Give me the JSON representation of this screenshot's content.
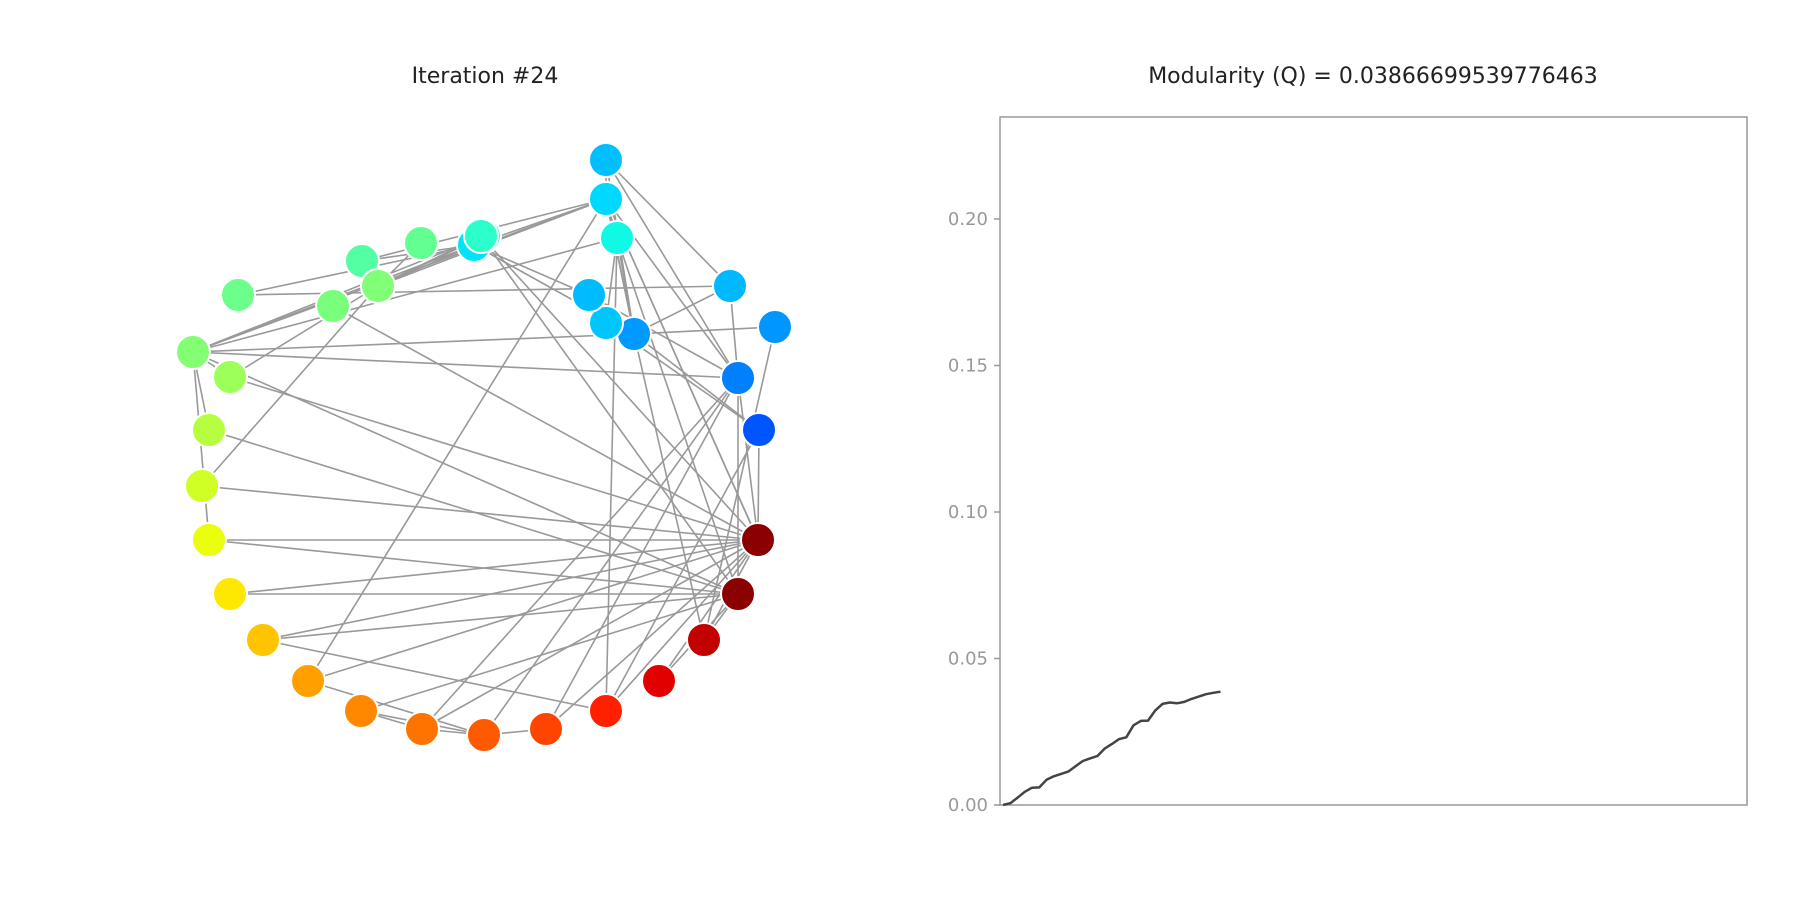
{
  "left_panel": {
    "title": "Iteration #24"
  },
  "right_panel": {
    "title": "Modularity (Q) = 0.03866699539776463"
  },
  "colors": {
    "edge": "#999999",
    "node_outline": "#ffffff",
    "line": "#444444",
    "axis_frame": "#999999",
    "tick_text": "#999999"
  },
  "chart_data": [
    {
      "type": "network",
      "title": "Iteration #24",
      "node_count": 36,
      "node_colormap": "jet",
      "nodes": [
        {
          "id": 0,
          "color": "#00bfff"
        },
        {
          "id": 1,
          "color": "#0099ff"
        },
        {
          "id": 2,
          "color": "#007fff"
        },
        {
          "id": 3,
          "color": "#0055ff"
        },
        {
          "id": 4,
          "color": "#8b0000"
        },
        {
          "id": 5,
          "color": "#8b0000"
        },
        {
          "id": 6,
          "color": "#c20000"
        },
        {
          "id": 7,
          "color": "#e00000"
        },
        {
          "id": 8,
          "color": "#ff2000"
        },
        {
          "id": 9,
          "color": "#ff4400"
        },
        {
          "id": 10,
          "color": "#ff5a00"
        },
        {
          "id": 11,
          "color": "#ff7400"
        },
        {
          "id": 12,
          "color": "#ff8800"
        },
        {
          "id": 13,
          "color": "#ffa000"
        },
        {
          "id": 14,
          "color": "#ffc400"
        },
        {
          "id": 15,
          "color": "#ffe800"
        },
        {
          "id": 16,
          "color": "#eaff0c"
        },
        {
          "id": 17,
          "color": "#d0ff26"
        },
        {
          "id": 18,
          "color": "#b6ff40"
        },
        {
          "id": 19,
          "color": "#9cff5a"
        },
        {
          "id": 20,
          "color": "#84ff73"
        },
        {
          "id": 21,
          "color": "#6cff8b"
        },
        {
          "id": 22,
          "color": "#54ffa3"
        },
        {
          "id": 23,
          "color": "#3cffbb"
        },
        {
          "id": 24,
          "color": "#00e4f8"
        },
        {
          "id": 25,
          "color": "#00c6ff"
        },
        {
          "id": 26,
          "color": "#00bcff"
        },
        {
          "id": 27,
          "color": "#00d4ff"
        },
        {
          "id": 28,
          "color": "#0096ff"
        },
        {
          "id": 29,
          "color": "#10f8e6"
        },
        {
          "id": 30,
          "color": "#00b8ff"
        },
        {
          "id": 31,
          "color": "#80ff77"
        },
        {
          "id": 32,
          "color": "#2cffcb"
        },
        {
          "id": 33,
          "color": "#7aff7d"
        },
        {
          "id": 34,
          "color": "#64ff93"
        },
        {
          "id": 35,
          "color": "#00d8ff"
        }
      ],
      "edges": [
        [
          30,
          0
        ],
        [
          30,
          1
        ],
        [
          30,
          21
        ],
        [
          35,
          0
        ],
        [
          35,
          1
        ],
        [
          35,
          2
        ],
        [
          35,
          20
        ],
        [
          35,
          31
        ],
        [
          35,
          24
        ],
        [
          35,
          22
        ],
        [
          35,
          29
        ],
        [
          35,
          4
        ],
        [
          35,
          27
        ],
        [
          35,
          13
        ],
        [
          29,
          20
        ],
        [
          29,
          1
        ],
        [
          29,
          8
        ],
        [
          29,
          5
        ],
        [
          24,
          20
        ],
        [
          24,
          1
        ],
        [
          24,
          31
        ],
        [
          32,
          31
        ],
        [
          32,
          4
        ],
        [
          32,
          5
        ],
        [
          33,
          4
        ],
        [
          34,
          31
        ],
        [
          20,
          2
        ],
        [
          20,
          5
        ],
        [
          20,
          18
        ],
        [
          20,
          19
        ],
        [
          20,
          16
        ],
        [
          20,
          1
        ],
        [
          31,
          17
        ],
        [
          31,
          19
        ],
        [
          17,
          4
        ],
        [
          18,
          5
        ],
        [
          16,
          4
        ],
        [
          16,
          5
        ],
        [
          15,
          4
        ],
        [
          15,
          5
        ],
        [
          14,
          4
        ],
        [
          14,
          5
        ],
        [
          14,
          8
        ],
        [
          13,
          4
        ],
        [
          13,
          10
        ],
        [
          12,
          11
        ],
        [
          12,
          10
        ],
        [
          11,
          10
        ],
        [
          10,
          9
        ],
        [
          10,
          2
        ],
        [
          11,
          2
        ],
        [
          9,
          2
        ],
        [
          8,
          4
        ],
        [
          8,
          3
        ],
        [
          7,
          4
        ],
        [
          7,
          5
        ],
        [
          6,
          4
        ],
        [
          6,
          5
        ],
        [
          6,
          1
        ],
        [
          26,
          2
        ],
        [
          26,
          24
        ],
        [
          25,
          29
        ],
        [
          25,
          3
        ],
        [
          27,
          4
        ],
        [
          27,
          1
        ],
        [
          28,
          1
        ],
        [
          28,
          6
        ],
        [
          3,
          4
        ],
        [
          2,
          4
        ],
        [
          2,
          5
        ],
        [
          1,
          3
        ],
        [
          0,
          1
        ],
        [
          0,
          2
        ],
        [
          9,
          4
        ],
        [
          11,
          4
        ],
        [
          12,
          5
        ],
        [
          19,
          4
        ],
        [
          21,
          24
        ],
        [
          22,
          24
        ],
        [
          23,
          20
        ],
        [
          23,
          31
        ],
        [
          30,
          2
        ]
      ]
    },
    {
      "type": "line",
      "title": "Modularity (Q) = 0.03866699539776463",
      "xlabel": "",
      "ylabel": "",
      "xlim": [
        0,
        100
      ],
      "ylim": [
        0,
        0.2345
      ],
      "yticks": [
        "0.00",
        "0.05",
        "0.10",
        "0.15",
        "0.20"
      ],
      "ytick_values": [
        0,
        0.05,
        0.1,
        0.15,
        0.2
      ],
      "xticks_visible": false,
      "grid": false,
      "x": [
        0,
        1,
        2,
        3,
        4,
        5,
        6,
        7,
        8,
        9,
        10,
        11,
        12,
        13,
        14,
        15,
        16,
        17,
        18,
        19,
        20,
        21,
        22,
        23,
        24,
        25,
        26,
        27,
        28,
        29,
        30
      ],
      "values": [
        0.0,
        0.0006,
        0.0025,
        0.0045,
        0.0059,
        0.006,
        0.0086,
        0.0098,
        0.0106,
        0.0114,
        0.0132,
        0.015,
        0.0159,
        0.0167,
        0.0192,
        0.0208,
        0.0225,
        0.0231,
        0.0272,
        0.0287,
        0.0288,
        0.0323,
        0.0345,
        0.035,
        0.0347,
        0.0352,
        0.0362,
        0.037,
        0.0378,
        0.0383,
        0.03867
      ]
    }
  ]
}
